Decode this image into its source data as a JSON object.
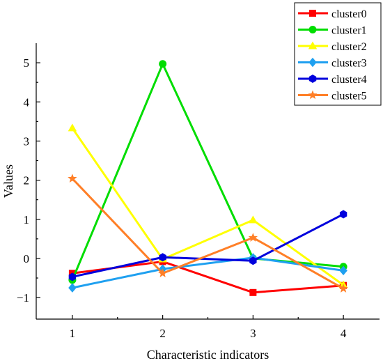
{
  "chart_data": {
    "type": "line",
    "xlabel": "Characteristic indicators",
    "ylabel": "Values",
    "x": [
      1,
      2,
      3,
      4
    ],
    "xlim": [
      0.6,
      4.4
    ],
    "ylim": [
      -1.55,
      5.5
    ],
    "yticks": [
      -1,
      0,
      1,
      2,
      3,
      4,
      5
    ],
    "xticks": [
      1,
      2,
      3,
      4
    ],
    "grid": false,
    "legend_position": "top-right",
    "series": [
      {
        "name": "cluster0",
        "values": [
          -0.38,
          -0.08,
          -0.87,
          -0.69
        ],
        "color": "#ff0000",
        "marker": "square"
      },
      {
        "name": "cluster1",
        "values": [
          -0.55,
          4.97,
          0.0,
          -0.21
        ],
        "color": "#00dd00",
        "marker": "circle"
      },
      {
        "name": "cluster2",
        "values": [
          3.33,
          -0.02,
          0.98,
          -0.68
        ],
        "color": "#ffff00",
        "marker": "triangle"
      },
      {
        "name": "cluster3",
        "values": [
          -0.75,
          -0.27,
          0.02,
          -0.31
        ],
        "color": "#1fa0f0",
        "marker": "diamond"
      },
      {
        "name": "cluster4",
        "values": [
          -0.47,
          0.03,
          -0.06,
          1.13
        ],
        "color": "#0000dd",
        "marker": "hexagon"
      },
      {
        "name": "cluster5",
        "values": [
          2.04,
          -0.38,
          0.53,
          -0.77
        ],
        "color": "#ff7f27",
        "marker": "star"
      }
    ]
  }
}
